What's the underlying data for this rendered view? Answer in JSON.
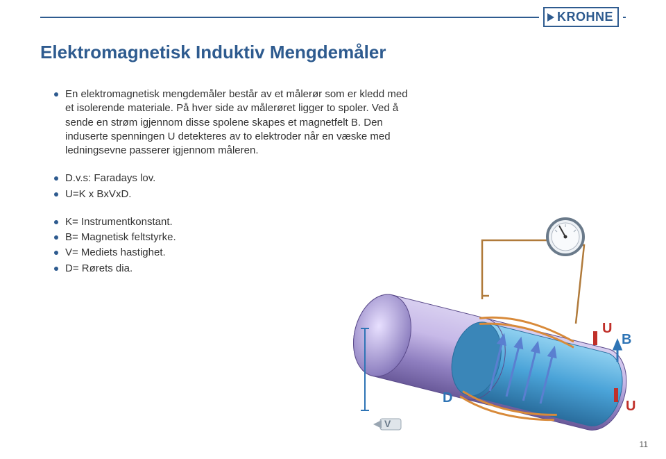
{
  "brand": {
    "name": "KROHNE",
    "color": "#2e5b8f"
  },
  "title": {
    "text": "Elektromagnetisk Induktiv Mengdemåler",
    "color": "#2e5b8f"
  },
  "bullet": {
    "color": "#2e5b8f",
    "text_color": "#333333"
  },
  "paragraphs": [
    "En elektromagnetisk mengdemåler består av et målerør som er kledd med et isolerende materiale. På hver side av målerøret ligger to spoler. Ved å sende en strøm igjennom disse spolene skapes et magnetfelt B. Den induserte spenningen U detekteres av to elektroder når en væske med ledningsevne passerer igjennom måleren."
  ],
  "formula_lines": [
    "D.v.s: Faradays lov.",
    "U=K x BxVxD."
  ],
  "legend_lines": [
    "K= Instrumentkonstant.",
    "B= Magnetisk feltstyrke.",
    "V= Mediets hastighet.",
    "D= Rørets dia."
  ],
  "diagram": {
    "type": "infographic",
    "background_color": "#ffffff",
    "pipe": {
      "outer_color_light": "#c7b9e8",
      "outer_color_dark": "#7e6fb5",
      "inner_color": "#4aa3d8",
      "inner_shadow": "#2a6e9e",
      "outline": "#5a4a8a"
    },
    "coil": {
      "wire_color": "#d88a3a",
      "block_color": "#b8864a"
    },
    "meter": {
      "body_color": "#dce3ea",
      "rim_color": "#6a7a8a",
      "needle_color": "#333333"
    },
    "arrows": {
      "B_color": "#2e74b5",
      "U_color": "#c0302a",
      "V_color": "#9aa6b2",
      "D_color": "#2e74b5"
    },
    "labels": {
      "U": {
        "text": "U",
        "color": "#c0302a",
        "fontsize": 20,
        "weight": "bold"
      },
      "B": {
        "text": "B",
        "color": "#2e74b5",
        "fontsize": 20,
        "weight": "bold"
      },
      "D": {
        "text": "D",
        "color": "#2e74b5",
        "fontsize": 20,
        "weight": "bold"
      },
      "V": {
        "text": "V",
        "color": "#6a7a8a",
        "fontsize": 18,
        "weight": "bold"
      }
    }
  },
  "page_number": "11"
}
